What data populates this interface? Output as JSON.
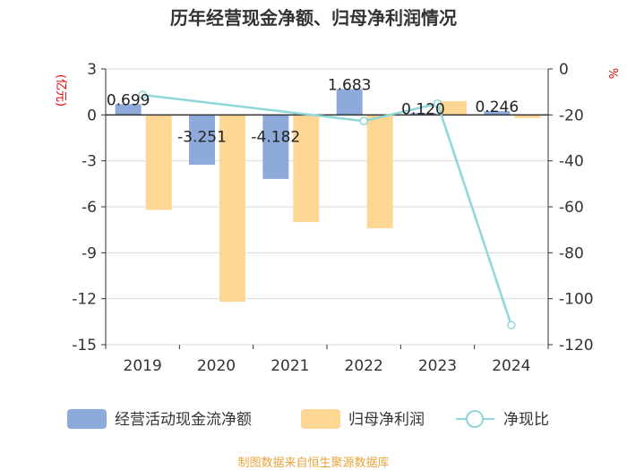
{
  "chart_data": {
    "type": "bar",
    "title": "历年经营现金净额、归母净利润情况",
    "categories": [
      "2019",
      "2020",
      "2021",
      "2022",
      "2023",
      "2024"
    ],
    "series": [
      {
        "name": "经营活动现金流净额",
        "axis": "left",
        "kind": "bar",
        "color": "#8eaadb",
        "values": [
          0.699,
          -3.251,
          -4.182,
          1.683,
          0.12,
          0.246
        ],
        "labels": [
          "0.699",
          "-3.251",
          "-4.182",
          "1.683",
          "0.120",
          "0.246"
        ]
      },
      {
        "name": "归母净利润",
        "axis": "left",
        "kind": "bar",
        "color": "#ffd794",
        "values": [
          -6.2,
          -12.2,
          -7.0,
          -7.4,
          0.9,
          -0.2
        ]
      },
      {
        "name": "净现比",
        "axis": "right",
        "kind": "line",
        "color": "#8fd6d8",
        "values": [
          -11.3,
          null,
          null,
          -22.7,
          -15.1,
          -111.5
        ]
      }
    ],
    "y_left": {
      "label": "(亿元)",
      "ylim": [
        -15,
        3
      ],
      "ticks": [
        "3",
        "0",
        "-3",
        "-6",
        "-9",
        "-12",
        "-15"
      ]
    },
    "y_right": {
      "label": "%",
      "ylim": [
        -120,
        0
      ],
      "ticks": [
        "0",
        "-20",
        "-40",
        "-60",
        "-80",
        "-100",
        "-120"
      ]
    },
    "legend_position": "bottom",
    "source": "制图数据来自恒生聚源数据库"
  }
}
